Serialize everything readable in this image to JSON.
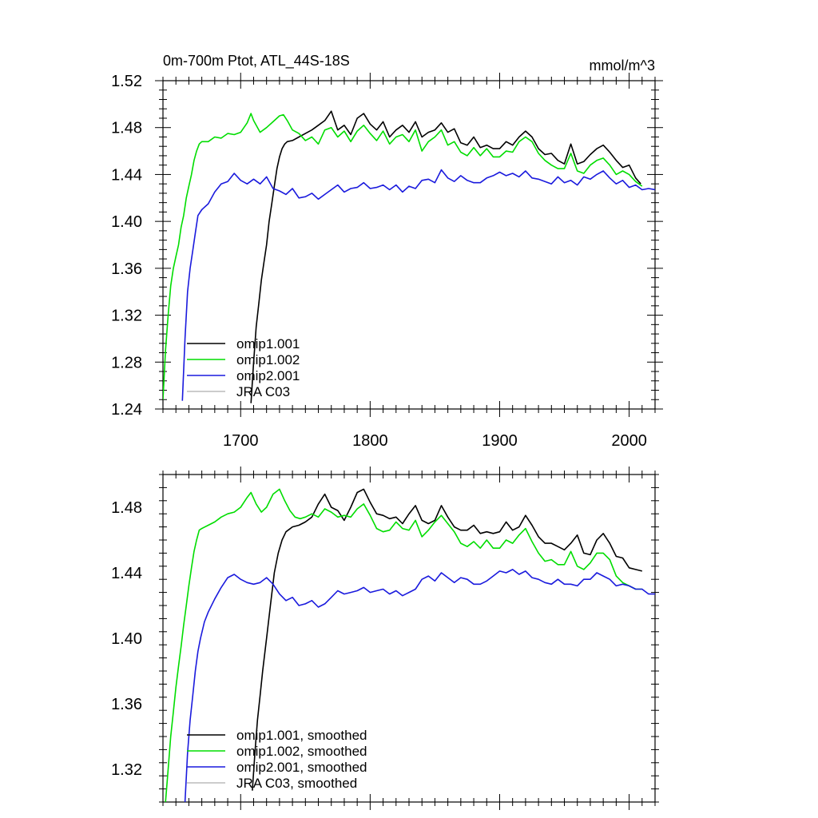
{
  "chart_data": [
    {
      "type": "line",
      "title": "0m-700m Ptot, ATL_44S-18S",
      "units": "mmol/m^3",
      "xlim": [
        1640,
        2020
      ],
      "ylim": [
        1.24,
        1.52
      ],
      "x_ticks": [
        "1700",
        "1800",
        "1900",
        "2000"
      ],
      "y_ticks": [
        "1.24",
        "1.28",
        "1.32",
        "1.36",
        "1.40",
        "1.44",
        "1.48",
        "1.52"
      ],
      "legend_position": "lower-left",
      "series": [
        {
          "name": "omip1.001",
          "color": "#000000",
          "x": [
            1708,
            1710,
            1712,
            1714,
            1716,
            1718,
            1720,
            1722,
            1724,
            1726,
            1728,
            1730,
            1732,
            1734,
            1736,
            1740,
            1745,
            1750,
            1755,
            1760,
            1765,
            1770,
            1775,
            1780,
            1785,
            1790,
            1795,
            1800,
            1805,
            1810,
            1815,
            1820,
            1825,
            1830,
            1835,
            1840,
            1845,
            1850,
            1855,
            1860,
            1865,
            1870,
            1875,
            1880,
            1885,
            1890,
            1895,
            1900,
            1905,
            1910,
            1915,
            1920,
            1925,
            1930,
            1935,
            1940,
            1945,
            1950,
            1955,
            1960,
            1965,
            1970,
            1975,
            1980,
            1985,
            1990,
            1995,
            2000,
            2005,
            2009
          ],
          "y": [
            1.245,
            1.28,
            1.31,
            1.33,
            1.35,
            1.365,
            1.38,
            1.4,
            1.415,
            1.43,
            1.445,
            1.455,
            1.462,
            1.466,
            1.468,
            1.469,
            1.472,
            1.475,
            1.478,
            1.482,
            1.486,
            1.494,
            1.478,
            1.482,
            1.474,
            1.488,
            1.492,
            1.483,
            1.478,
            1.485,
            1.472,
            1.478,
            1.482,
            1.476,
            1.485,
            1.472,
            1.476,
            1.478,
            1.484,
            1.476,
            1.479,
            1.467,
            1.465,
            1.472,
            1.463,
            1.465,
            1.462,
            1.462,
            1.468,
            1.465,
            1.472,
            1.477,
            1.472,
            1.462,
            1.457,
            1.458,
            1.452,
            1.449,
            1.466,
            1.449,
            1.451,
            1.457,
            1.462,
            1.465,
            1.459,
            1.452,
            1.446,
            1.448,
            1.437,
            1.432
          ]
        },
        {
          "name": "omip1.002",
          "color": "#00dd00",
          "x": [
            1640,
            1642,
            1644,
            1646,
            1648,
            1650,
            1652,
            1654,
            1656,
            1658,
            1660,
            1662,
            1664,
            1666,
            1668,
            1670,
            1675,
            1680,
            1685,
            1690,
            1695,
            1700,
            1705,
            1708,
            1710,
            1715,
            1720,
            1725,
            1730,
            1733,
            1736,
            1740,
            1745,
            1750,
            1755,
            1760,
            1765,
            1770,
            1775,
            1780,
            1785,
            1790,
            1795,
            1800,
            1805,
            1810,
            1815,
            1820,
            1825,
            1830,
            1835,
            1840,
            1845,
            1850,
            1855,
            1860,
            1865,
            1870,
            1875,
            1880,
            1885,
            1890,
            1895,
            1900,
            1905,
            1910,
            1915,
            1920,
            1925,
            1930,
            1935,
            1940,
            1945,
            1950,
            1955,
            1960,
            1965,
            1970,
            1975,
            1980,
            1985,
            1990,
            1995,
            2000,
            2005,
            2010
          ],
          "y": [
            1.248,
            1.29,
            1.32,
            1.345,
            1.36,
            1.37,
            1.38,
            1.395,
            1.405,
            1.42,
            1.43,
            1.44,
            1.452,
            1.46,
            1.466,
            1.468,
            1.468,
            1.472,
            1.471,
            1.475,
            1.474,
            1.476,
            1.484,
            1.492,
            1.486,
            1.476,
            1.48,
            1.485,
            1.49,
            1.491,
            1.486,
            1.478,
            1.475,
            1.469,
            1.472,
            1.466,
            1.478,
            1.48,
            1.472,
            1.477,
            1.468,
            1.477,
            1.482,
            1.475,
            1.469,
            1.477,
            1.466,
            1.472,
            1.474,
            1.468,
            1.478,
            1.46,
            1.468,
            1.472,
            1.478,
            1.465,
            1.468,
            1.459,
            1.456,
            1.463,
            1.456,
            1.462,
            1.455,
            1.455,
            1.46,
            1.459,
            1.468,
            1.472,
            1.468,
            1.458,
            1.452,
            1.448,
            1.445,
            1.445,
            1.458,
            1.443,
            1.441,
            1.448,
            1.452,
            1.454,
            1.448,
            1.44,
            1.443,
            1.44,
            1.434,
            1.43
          ]
        },
        {
          "name": "omip2.001",
          "color": "#1a1add",
          "x": [
            1655,
            1657,
            1659,
            1661,
            1663,
            1665,
            1667,
            1670,
            1675,
            1680,
            1685,
            1690,
            1695,
            1700,
            1705,
            1710,
            1715,
            1720,
            1725,
            1730,
            1735,
            1740,
            1745,
            1750,
            1755,
            1760,
            1765,
            1770,
            1775,
            1780,
            1785,
            1790,
            1795,
            1800,
            1805,
            1810,
            1815,
            1820,
            1825,
            1830,
            1835,
            1840,
            1845,
            1850,
            1855,
            1860,
            1865,
            1870,
            1875,
            1880,
            1885,
            1890,
            1895,
            1900,
            1905,
            1910,
            1915,
            1920,
            1925,
            1930,
            1935,
            1940,
            1945,
            1950,
            1955,
            1960,
            1965,
            1970,
            1975,
            1980,
            1985,
            1990,
            1995,
            2000,
            2005,
            2010,
            2015,
            2020
          ],
          "y": [
            1.247,
            1.3,
            1.34,
            1.36,
            1.375,
            1.39,
            1.405,
            1.41,
            1.415,
            1.425,
            1.432,
            1.434,
            1.441,
            1.435,
            1.432,
            1.436,
            1.432,
            1.438,
            1.428,
            1.426,
            1.423,
            1.428,
            1.42,
            1.421,
            1.424,
            1.419,
            1.423,
            1.427,
            1.431,
            1.425,
            1.428,
            1.429,
            1.433,
            1.428,
            1.429,
            1.431,
            1.427,
            1.431,
            1.425,
            1.43,
            1.428,
            1.435,
            1.436,
            1.433,
            1.444,
            1.437,
            1.434,
            1.439,
            1.435,
            1.433,
            1.433,
            1.437,
            1.439,
            1.442,
            1.439,
            1.441,
            1.438,
            1.443,
            1.437,
            1.436,
            1.434,
            1.432,
            1.438,
            1.433,
            1.435,
            1.431,
            1.438,
            1.436,
            1.44,
            1.443,
            1.437,
            1.432,
            1.435,
            1.429,
            1.431,
            1.427,
            1.428,
            1.427
          ]
        },
        {
          "name": "JRA C03",
          "color": "#bbbbbb",
          "x": [],
          "y": []
        }
      ]
    },
    {
      "type": "line",
      "xlim": [
        1640,
        2020
      ],
      "ylim": [
        1.3,
        1.5
      ],
      "x_ticks": [],
      "y_ticks": [
        "1.32",
        "1.36",
        "1.40",
        "1.44",
        "1.48"
      ],
      "legend_position": "lower-left",
      "series": [
        {
          "name": "omip1.001, smoothed",
          "color": "#000000",
          "x": [
            1709,
            1711,
            1713,
            1715,
            1717,
            1720,
            1723,
            1726,
            1729,
            1732,
            1735,
            1740,
            1745,
            1750,
            1755,
            1760,
            1765,
            1770,
            1775,
            1780,
            1785,
            1790,
            1795,
            1800,
            1805,
            1810,
            1815,
            1820,
            1825,
            1830,
            1835,
            1840,
            1845,
            1850,
            1855,
            1860,
            1865,
            1870,
            1875,
            1880,
            1885,
            1890,
            1895,
            1900,
            1905,
            1910,
            1915,
            1920,
            1925,
            1930,
            1935,
            1940,
            1945,
            1950,
            1955,
            1960,
            1965,
            1970,
            1975,
            1980,
            1985,
            1990,
            1995,
            2000,
            2005,
            2010
          ],
          "y": [
            1.307,
            1.33,
            1.35,
            1.365,
            1.38,
            1.4,
            1.42,
            1.44,
            1.452,
            1.46,
            1.465,
            1.468,
            1.469,
            1.471,
            1.474,
            1.482,
            1.488,
            1.48,
            1.478,
            1.472,
            1.48,
            1.489,
            1.491,
            1.483,
            1.476,
            1.475,
            1.473,
            1.474,
            1.47,
            1.476,
            1.481,
            1.472,
            1.47,
            1.472,
            1.481,
            1.474,
            1.468,
            1.466,
            1.466,
            1.469,
            1.464,
            1.465,
            1.464,
            1.465,
            1.471,
            1.466,
            1.468,
            1.475,
            1.469,
            1.462,
            1.458,
            1.458,
            1.456,
            1.454,
            1.458,
            1.463,
            1.452,
            1.451,
            1.46,
            1.464,
            1.458,
            1.45,
            1.449,
            1.443,
            1.442,
            1.441
          ]
        },
        {
          "name": "omip1.002, smoothed",
          "color": "#00dd00",
          "x": [
            1642,
            1644,
            1646,
            1648,
            1650,
            1652,
            1654,
            1656,
            1658,
            1660,
            1662,
            1664,
            1666,
            1668,
            1670,
            1675,
            1680,
            1685,
            1690,
            1695,
            1700,
            1705,
            1708,
            1712,
            1716,
            1720,
            1725,
            1730,
            1734,
            1738,
            1742,
            1746,
            1750,
            1755,
            1760,
            1765,
            1770,
            1775,
            1780,
            1785,
            1790,
            1795,
            1800,
            1805,
            1810,
            1815,
            1820,
            1825,
            1830,
            1835,
            1840,
            1845,
            1850,
            1855,
            1860,
            1865,
            1870,
            1875,
            1880,
            1885,
            1890,
            1895,
            1900,
            1905,
            1910,
            1915,
            1920,
            1925,
            1930,
            1935,
            1940,
            1945,
            1950,
            1955,
            1960,
            1965,
            1970,
            1975,
            1980,
            1985,
            1990,
            1995,
            2000,
            2005,
            2010
          ],
          "y": [
            1.3,
            1.32,
            1.34,
            1.355,
            1.37,
            1.383,
            1.395,
            1.408,
            1.42,
            1.432,
            1.443,
            1.453,
            1.46,
            1.466,
            1.467,
            1.469,
            1.471,
            1.474,
            1.476,
            1.477,
            1.48,
            1.486,
            1.489,
            1.482,
            1.477,
            1.48,
            1.488,
            1.491,
            1.484,
            1.478,
            1.474,
            1.473,
            1.474,
            1.476,
            1.474,
            1.479,
            1.477,
            1.474,
            1.475,
            1.474,
            1.479,
            1.482,
            1.475,
            1.467,
            1.465,
            1.466,
            1.471,
            1.467,
            1.466,
            1.472,
            1.462,
            1.466,
            1.471,
            1.475,
            1.47,
            1.465,
            1.458,
            1.456,
            1.459,
            1.455,
            1.46,
            1.455,
            1.455,
            1.46,
            1.458,
            1.463,
            1.467,
            1.459,
            1.452,
            1.447,
            1.448,
            1.445,
            1.445,
            1.453,
            1.444,
            1.442,
            1.446,
            1.452,
            1.452,
            1.448,
            1.438,
            1.434,
            1.432,
            1.43,
            1.43
          ]
        },
        {
          "name": "omip2.001, smoothed",
          "color": "#1a1add",
          "x": [
            1657,
            1659,
            1661,
            1663,
            1665,
            1667,
            1669,
            1672,
            1675,
            1680,
            1685,
            1690,
            1695,
            1700,
            1705,
            1710,
            1715,
            1720,
            1725,
            1730,
            1735,
            1740,
            1745,
            1750,
            1755,
            1760,
            1765,
            1770,
            1775,
            1780,
            1785,
            1790,
            1795,
            1800,
            1805,
            1810,
            1815,
            1820,
            1825,
            1830,
            1835,
            1840,
            1845,
            1850,
            1855,
            1860,
            1865,
            1870,
            1875,
            1880,
            1885,
            1890,
            1895,
            1900,
            1905,
            1910,
            1915,
            1920,
            1925,
            1930,
            1935,
            1940,
            1945,
            1950,
            1955,
            1960,
            1965,
            1970,
            1975,
            1980,
            1985,
            1990,
            1995,
            2000,
            2005,
            2010,
            2015,
            2020
          ],
          "y": [
            1.3,
            1.33,
            1.35,
            1.365,
            1.38,
            1.392,
            1.4,
            1.41,
            1.416,
            1.424,
            1.431,
            1.437,
            1.439,
            1.436,
            1.434,
            1.433,
            1.434,
            1.437,
            1.433,
            1.427,
            1.423,
            1.425,
            1.42,
            1.421,
            1.423,
            1.419,
            1.421,
            1.425,
            1.429,
            1.427,
            1.428,
            1.429,
            1.431,
            1.428,
            1.429,
            1.43,
            1.427,
            1.429,
            1.426,
            1.428,
            1.43,
            1.436,
            1.438,
            1.435,
            1.44,
            1.437,
            1.434,
            1.437,
            1.436,
            1.433,
            1.433,
            1.435,
            1.438,
            1.441,
            1.44,
            1.442,
            1.439,
            1.441,
            1.437,
            1.436,
            1.434,
            1.433,
            1.436,
            1.433,
            1.433,
            1.432,
            1.436,
            1.436,
            1.44,
            1.438,
            1.436,
            1.432,
            1.433,
            1.432,
            1.43,
            1.43,
            1.427,
            1.427
          ]
        },
        {
          "name": "JRA C03, smoothed",
          "color": "#bbbbbb",
          "x": [],
          "y": []
        }
      ]
    }
  ]
}
